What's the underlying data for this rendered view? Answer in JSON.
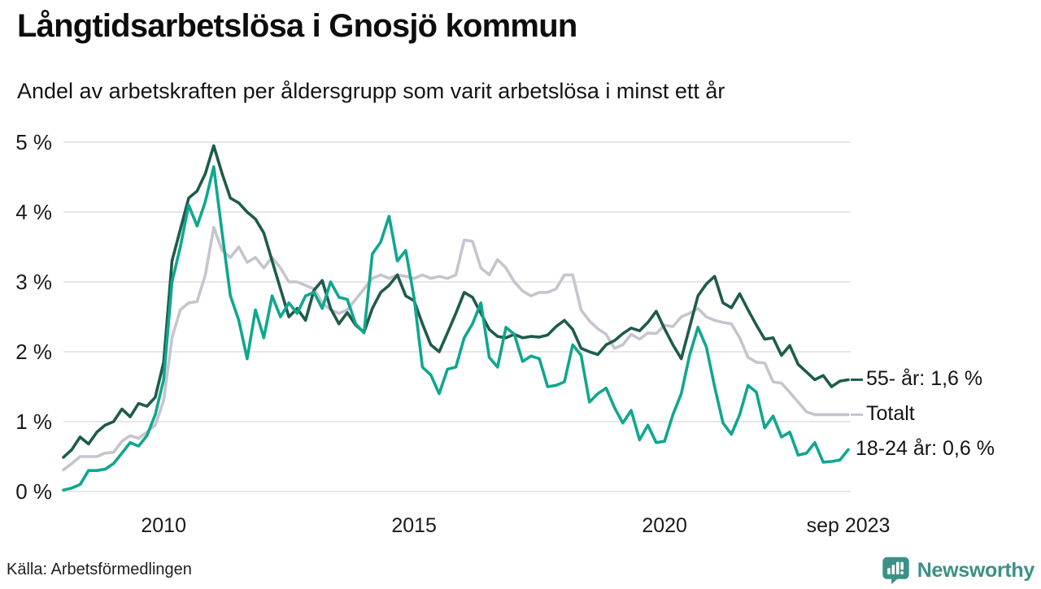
{
  "header": {
    "title": "Långtidsarbetslösa i Gnosjö kommun",
    "subtitle": "Andel av arbetskraften per åldersgrupp som varit arbetslösa i minst ett år"
  },
  "chart_data": {
    "type": "line",
    "title": "Långtidsarbetslösa i Gnosjö kommun",
    "subtitle": "Andel av arbetskraften per åldersgrupp som varit arbetslösa i minst ett år",
    "grid": true,
    "unit": "%",
    "ylim": [
      0,
      5
    ],
    "y_ticks": [
      {
        "value": 0,
        "label": "0 %"
      },
      {
        "value": 1,
        "label": "1 %"
      },
      {
        "value": 2,
        "label": "2 %"
      },
      {
        "value": 3,
        "label": "3 %"
      },
      {
        "value": 4,
        "label": "4 %"
      },
      {
        "value": 5,
        "label": "5 %"
      }
    ],
    "x_start_year": 2008.0,
    "x_end_year": 2023.667,
    "points_per_year": 6,
    "x_ticks": [
      {
        "label": "2010",
        "year": 2010
      },
      {
        "label": "2015",
        "year": 2015
      },
      {
        "label": "2020",
        "year": 2020
      },
      {
        "label": "sep 2023",
        "year": 2023.667
      }
    ],
    "legend_position": "end-of-line-labels-right",
    "series": [
      {
        "id": "totalt",
        "name": "Totalt",
        "end_label": "Totalt",
        "end_dash": true,
        "color": "#c6c4ce",
        "last_value_label": "Totalt",
        "values": [
          0.31,
          0.4,
          0.5,
          0.5,
          0.5,
          0.55,
          0.56,
          0.72,
          0.8,
          0.76,
          0.85,
          0.95,
          1.3,
          2.2,
          2.6,
          2.7,
          2.72,
          3.1,
          3.78,
          3.45,
          3.35,
          3.5,
          3.28,
          3.35,
          3.2,
          3.35,
          3.2,
          3.0,
          3.0,
          2.95,
          2.9,
          2.7,
          2.6,
          2.55,
          2.6,
          2.75,
          2.9,
          3.05,
          3.1,
          3.05,
          3.1,
          3.08,
          3.05,
          3.1,
          3.05,
          3.08,
          3.05,
          3.1,
          3.6,
          3.58,
          3.2,
          3.1,
          3.32,
          3.2,
          3.0,
          2.87,
          2.8,
          2.85,
          2.85,
          2.9,
          3.1,
          3.1,
          2.6,
          2.44,
          2.33,
          2.25,
          2.05,
          2.1,
          2.25,
          2.18,
          2.27,
          2.26,
          2.38,
          2.36,
          2.5,
          2.55,
          2.62,
          2.5,
          2.45,
          2.42,
          2.4,
          2.2,
          1.92,
          1.85,
          1.84,
          1.57,
          1.55,
          1.42,
          1.28,
          1.14,
          1.1,
          1.1,
          1.1,
          1.1,
          1.1
        ]
      },
      {
        "id": "55-ar",
        "name": "55- år",
        "end_label": "55- år: 1,6 %",
        "end_dash": true,
        "color": "#1e5b4b",
        "last_value_label": "1,6 %",
        "values": [
          0.49,
          0.6,
          0.78,
          0.68,
          0.85,
          0.95,
          1.0,
          1.18,
          1.07,
          1.26,
          1.22,
          1.35,
          1.85,
          3.3,
          3.75,
          4.2,
          4.3,
          4.55,
          4.95,
          4.55,
          4.2,
          4.13,
          4.0,
          3.9,
          3.7,
          3.3,
          2.9,
          2.5,
          2.62,
          2.45,
          2.88,
          3.02,
          2.62,
          2.4,
          2.56,
          2.38,
          2.28,
          2.62,
          2.85,
          2.95,
          3.1,
          2.8,
          2.73,
          2.4,
          2.1,
          2.0,
          2.27,
          2.55,
          2.85,
          2.78,
          2.55,
          2.32,
          2.22,
          2.2,
          2.25,
          2.2,
          2.22,
          2.21,
          2.24,
          2.36,
          2.45,
          2.32,
          2.05,
          2.0,
          1.96,
          2.1,
          2.16,
          2.26,
          2.34,
          2.3,
          2.42,
          2.58,
          2.33,
          2.1,
          1.9,
          2.35,
          2.8,
          2.97,
          3.08,
          2.7,
          2.63,
          2.83,
          2.6,
          2.38,
          2.18,
          2.2,
          1.95,
          2.09,
          1.82,
          1.71,
          1.6,
          1.66,
          1.5,
          1.58,
          1.6
        ]
      },
      {
        "id": "18-24-ar",
        "name": "18-24 år",
        "end_label": "18-24 år: 0,6 %",
        "end_dash": false,
        "color": "#0fa78e",
        "last_value_label": "0,6 %",
        "values": [
          0.02,
          0.05,
          0.1,
          0.3,
          0.3,
          0.32,
          0.4,
          0.55,
          0.7,
          0.65,
          0.8,
          1.1,
          1.6,
          3.0,
          3.5,
          4.1,
          3.8,
          4.15,
          4.65,
          3.7,
          2.8,
          2.45,
          1.9,
          2.6,
          2.2,
          2.8,
          2.5,
          2.7,
          2.55,
          2.8,
          2.85,
          2.62,
          3.0,
          2.78,
          2.75,
          2.4,
          2.27,
          3.4,
          3.57,
          3.94,
          3.3,
          3.45,
          2.77,
          1.78,
          1.67,
          1.4,
          1.75,
          1.78,
          2.2,
          2.4,
          2.7,
          1.92,
          1.78,
          2.35,
          2.25,
          1.86,
          1.94,
          1.9,
          1.5,
          1.52,
          1.57,
          2.1,
          1.95,
          1.28,
          1.4,
          1.48,
          1.2,
          0.98,
          1.16,
          0.74,
          0.95,
          0.7,
          0.72,
          1.1,
          1.4,
          1.95,
          2.35,
          2.07,
          1.5,
          0.98,
          0.82,
          1.1,
          1.52,
          1.42,
          0.91,
          1.08,
          0.78,
          0.85,
          0.52,
          0.55,
          0.7,
          0.42,
          0.43,
          0.45,
          0.6
        ]
      }
    ],
    "gridline_color": "#e7e6ea",
    "background_color": "#ffffff"
  },
  "footer": {
    "source": "Källa: Arbetsförmedlingen",
    "brand": "Newsworthy",
    "brand_color": "#3b9186"
  }
}
